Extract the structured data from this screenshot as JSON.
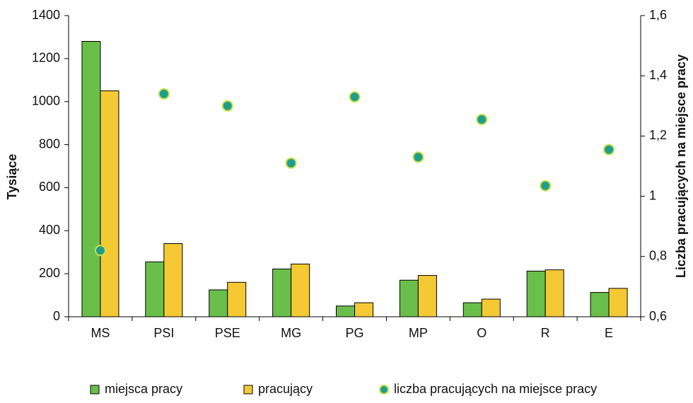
{
  "chart_data": {
    "type": "bar",
    "y_label": "Tysiące",
    "y2_label": "Liczba pracujących na miejsce pracy",
    "categories": [
      "MS",
      "PSI",
      "PSE",
      "MG",
      "PG",
      "MP",
      "O",
      "R",
      "E"
    ],
    "series": [
      {
        "name": "miejsca pracy",
        "color": "#6abf4b",
        "values": [
          1280,
          255,
          125,
          222,
          50,
          170,
          65,
          212,
          113
        ]
      },
      {
        "name": "pracujący",
        "color": "#f5c934",
        "values": [
          1050,
          340,
          160,
          245,
          65,
          192,
          82,
          218,
          132
        ]
      },
      {
        "name": "liczba pracujących na miejsce pracy",
        "type": "scatter",
        "axis": "y2",
        "color": "#1f9e8a",
        "edge_color": "#c8e04a",
        "values": [
          0.82,
          1.34,
          1.3,
          1.11,
          1.33,
          1.13,
          1.255,
          1.035,
          1.155
        ]
      }
    ],
    "ylim": [
      0,
      1400
    ],
    "yticks": [
      0,
      200,
      400,
      600,
      800,
      1000,
      1200,
      1400
    ],
    "y2lim": [
      0.6,
      1.6
    ],
    "y2ticks": [
      {
        "value": 0.6,
        "label": "0,6"
      },
      {
        "value": 0.8,
        "label": "0,8"
      },
      1,
      {
        "value": 1.2,
        "label": "1,2"
      },
      {
        "value": 1.4,
        "label": "1,4"
      },
      {
        "value": 1.6,
        "label": "1,6"
      }
    ],
    "grid": false,
    "legend": "bottom"
  }
}
